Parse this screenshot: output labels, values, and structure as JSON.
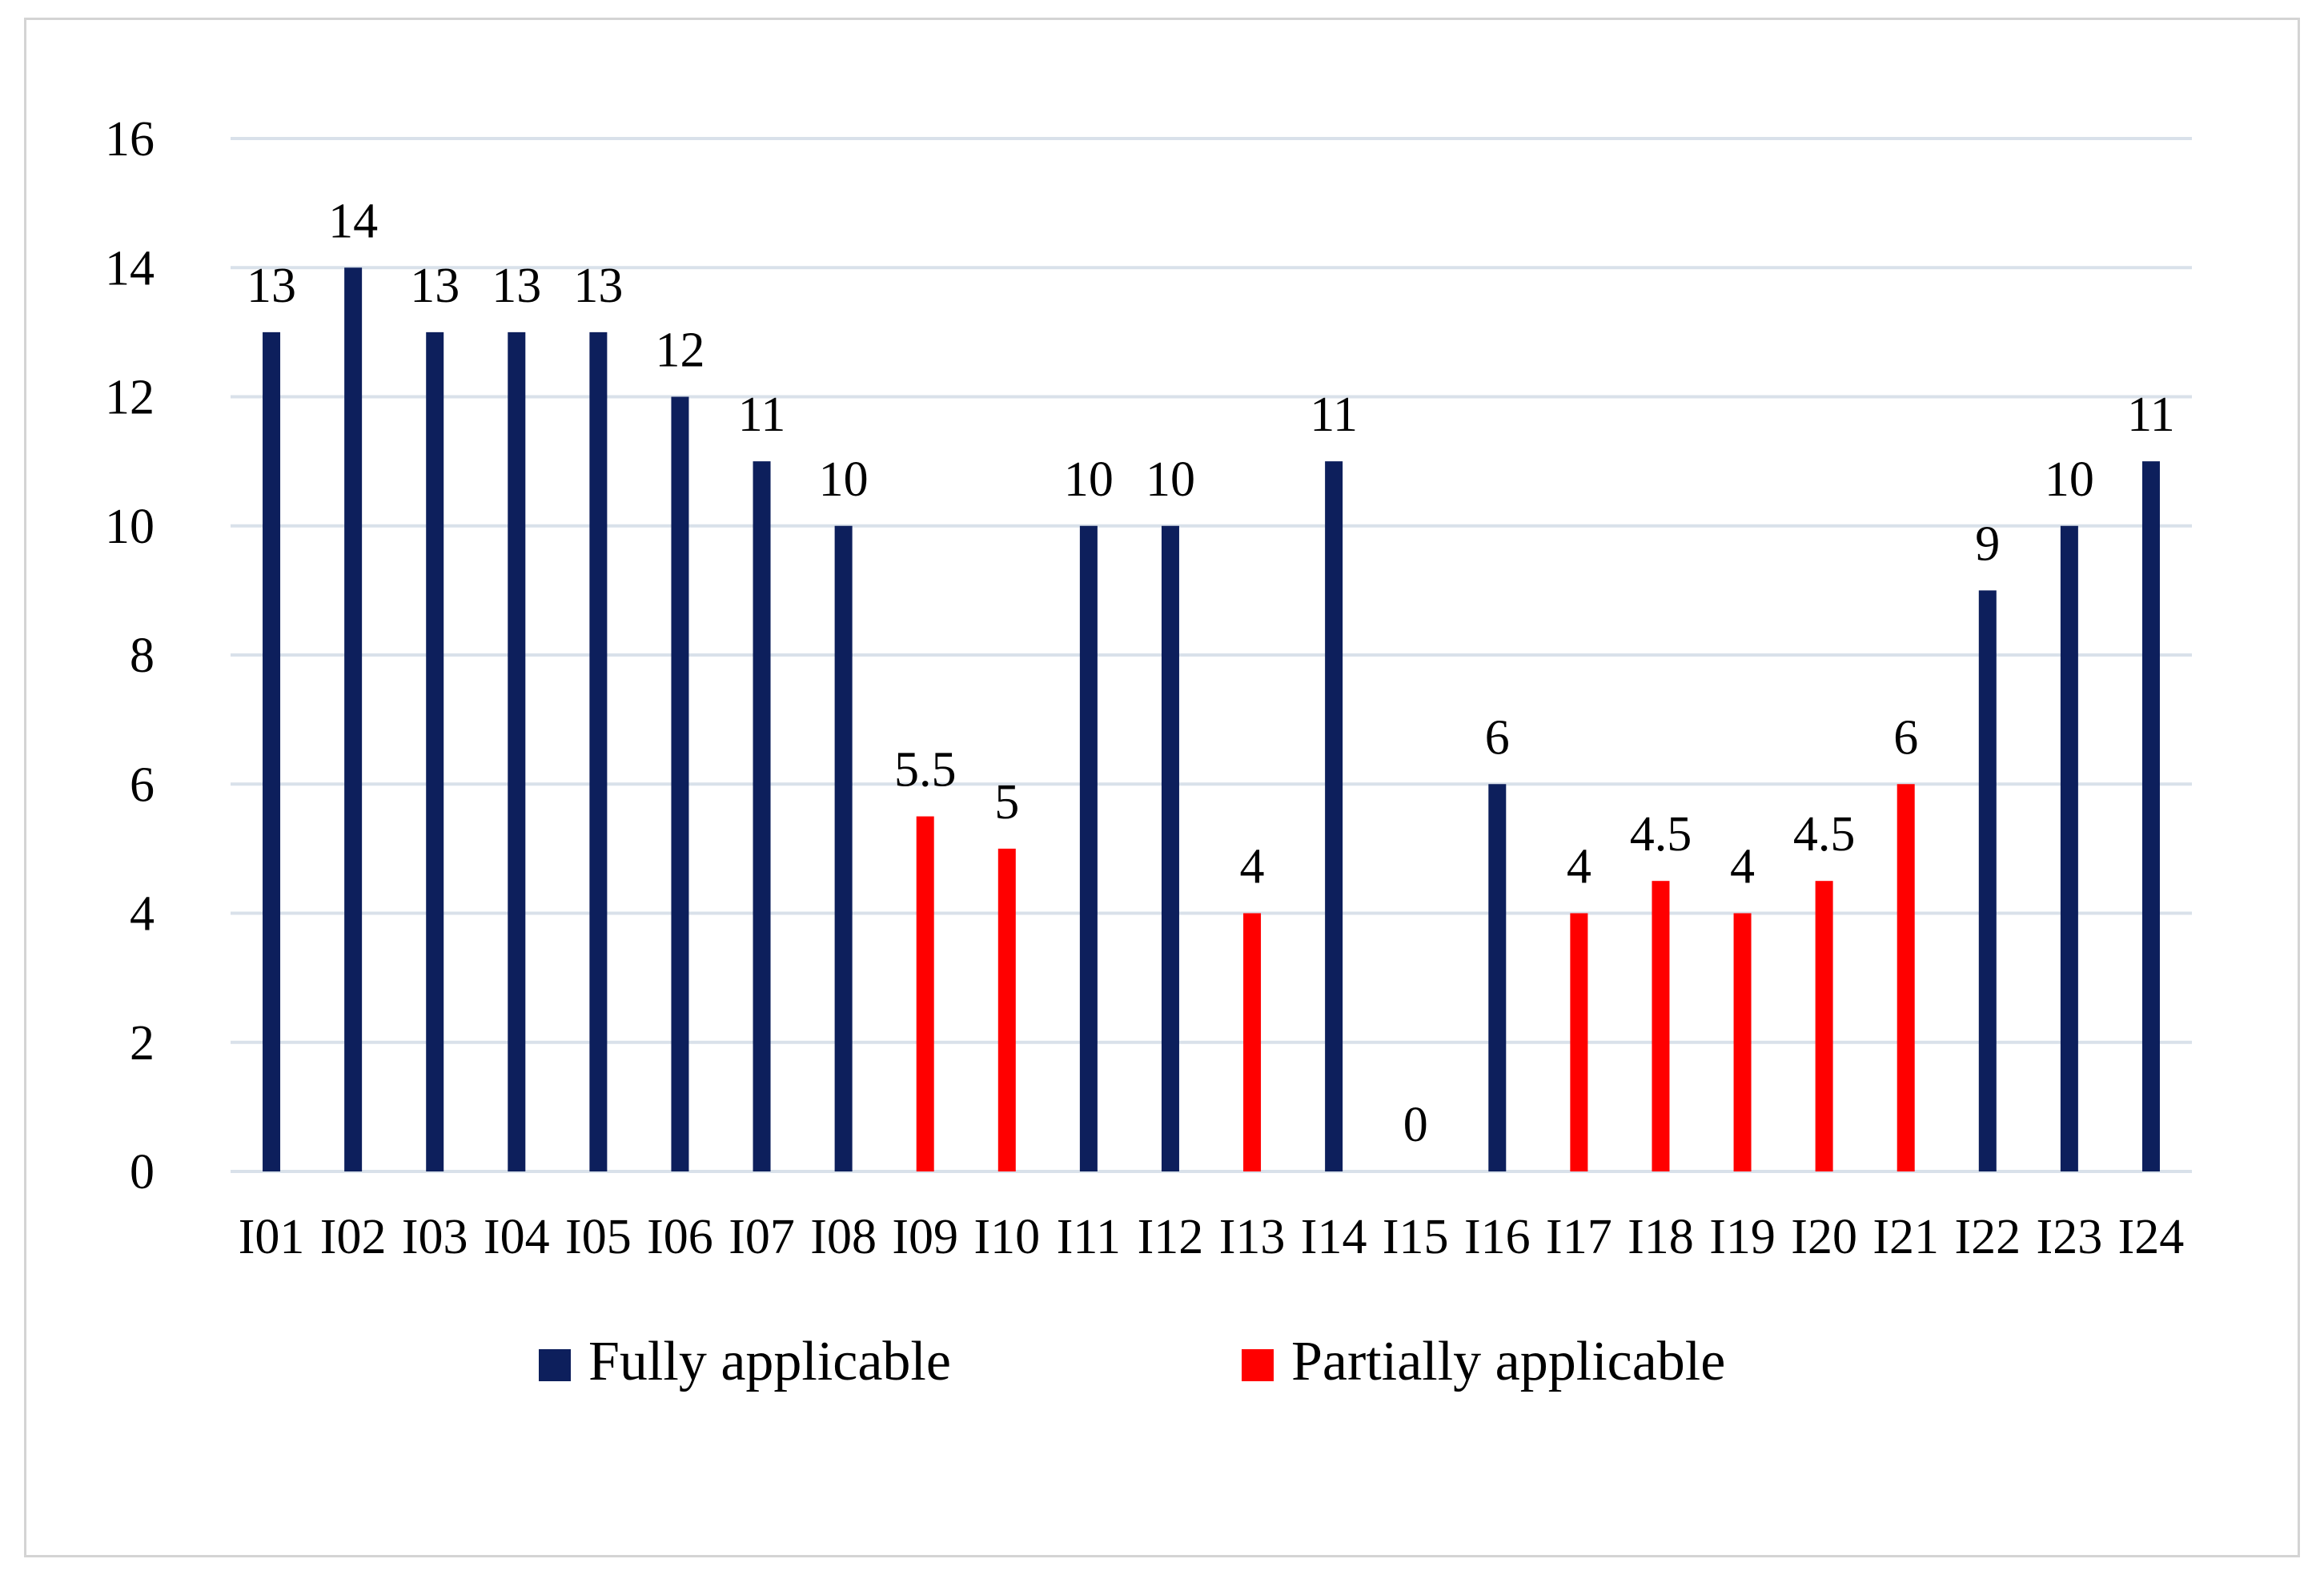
{
  "chart_data": {
    "type": "bar",
    "categories": [
      "I01",
      "I02",
      "I03",
      "I04",
      "I05",
      "I06",
      "I07",
      "I08",
      "I09",
      "I10",
      "I11",
      "I12",
      "I13",
      "I14",
      "I15",
      "I16",
      "I17",
      "I18",
      "I19",
      "I20",
      "I21",
      "I22",
      "I23",
      "I24"
    ],
    "values": [
      13,
      14,
      13,
      13,
      13,
      12,
      11,
      10,
      5.5,
      5,
      10,
      10,
      4,
      11,
      0,
      6,
      4,
      4.5,
      4,
      4.5,
      6,
      9,
      10,
      11
    ],
    "value_labels": [
      "13",
      "14",
      "13",
      "13",
      "13",
      "12",
      "11",
      "10",
      "5.5",
      "5",
      "10",
      "10",
      "4",
      "11",
      "0",
      "6",
      "4",
      "4.5",
      "4",
      "4.5",
      "6",
      "9",
      "10",
      "11"
    ],
    "groups": [
      "full",
      "full",
      "full",
      "full",
      "full",
      "full",
      "full",
      "full",
      "partial",
      "partial",
      "full",
      "full",
      "partial",
      "full",
      "full",
      "full",
      "partial",
      "partial",
      "partial",
      "partial",
      "partial",
      "full",
      "full",
      "full"
    ],
    "series": [
      {
        "key": "full",
        "name": "Fully applicable",
        "color": "#0d1f5c"
      },
      {
        "key": "partial",
        "name": "Partially applicable",
        "color": "#ff0000"
      }
    ],
    "yticks": [
      "0",
      "2",
      "4",
      "6",
      "8",
      "10",
      "12",
      "14",
      "16"
    ],
    "ylim": [
      0,
      16
    ],
    "ystep": 2,
    "grid": true,
    "legend_position": "bottom",
    "title": "",
    "xlabel": "",
    "ylabel": ""
  }
}
